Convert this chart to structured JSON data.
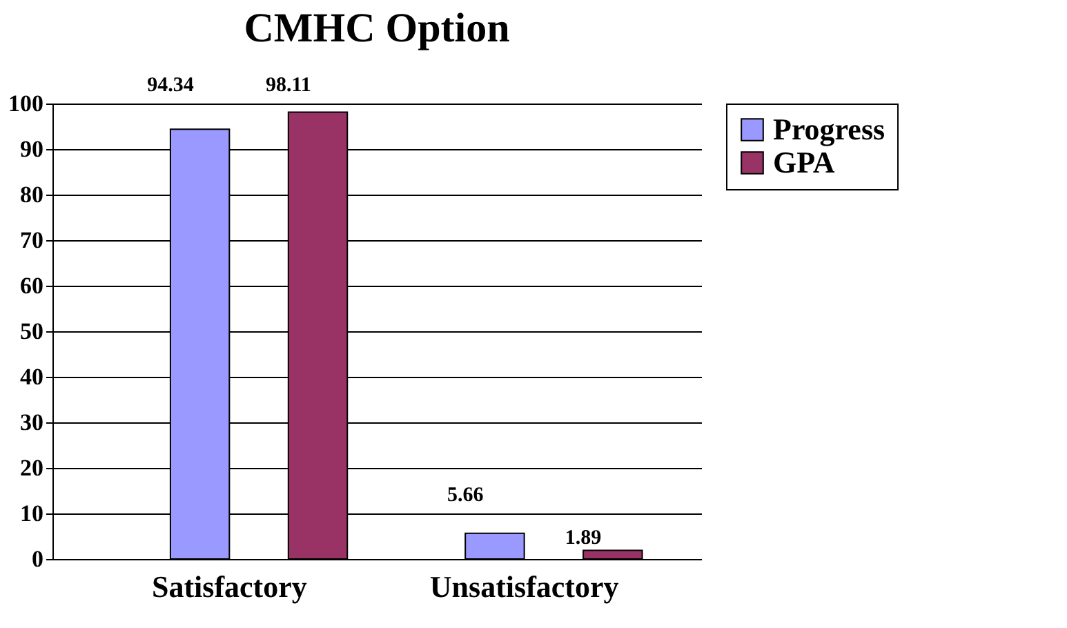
{
  "chart_data": {
    "type": "bar",
    "title": "CMHC Option",
    "categories": [
      "Satisfactory",
      "Unsatisfactory"
    ],
    "series": [
      {
        "name": "Progress",
        "color": "#9999ff",
        "values": [
          94.34,
          5.66
        ]
      },
      {
        "name": "GPA",
        "color": "#993366",
        "values": [
          98.11,
          1.89
        ]
      }
    ],
    "ylim": [
      0,
      100
    ],
    "yticks": [
      0,
      10,
      20,
      30,
      40,
      50,
      60,
      70,
      80,
      90,
      100
    ],
    "grid": "y",
    "legend": "right",
    "data_labels": true
  }
}
